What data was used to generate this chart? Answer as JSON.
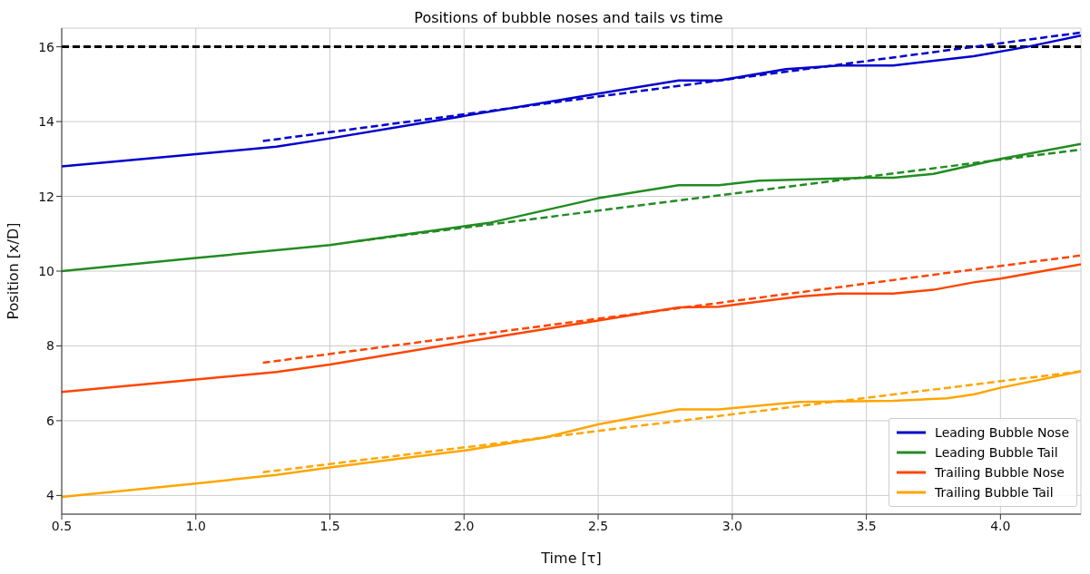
{
  "chart_data": {
    "type": "line",
    "title": "Positions of bubble noses and tails vs time",
    "xlabel": "Time [τ]",
    "ylabel": "Position [x/D]",
    "xlim": [
      0.5,
      4.3
    ],
    "xticks": [
      0.5,
      {
        "value": 1,
        "label": "1.0"
      },
      1.5,
      {
        "value": 2,
        "label": "2.0"
      },
      2.5,
      {
        "value": 3,
        "label": "3.0"
      },
      3.5,
      {
        "value": 4,
        "label": "4.0"
      }
    ],
    "ylim": [
      3.5,
      16.5
    ],
    "yticks": [
      4,
      6,
      8,
      10,
      12,
      14,
      16
    ],
    "grid": true,
    "legend": "bottom right",
    "marker": "none",
    "ref_lines": [
      {
        "axis": "y",
        "value": 16,
        "color": "#000000",
        "line_style": "dashed"
      }
    ],
    "series": [
      {
        "name": "Leading Bubble Nose",
        "color": "#0000cd",
        "line_style": "solid",
        "x": [
          0.5,
          1.0,
          1.3,
          1.5,
          2.0,
          2.5,
          2.8,
          2.95,
          3.2,
          3.4,
          3.6,
          3.9,
          4.1,
          4.3
        ],
        "values": [
          12.8,
          13.13,
          13.33,
          13.55,
          14.15,
          14.75,
          15.1,
          15.1,
          15.4,
          15.5,
          15.5,
          15.75,
          16.0,
          16.3
        ]
      },
      {
        "name": "Leading Bubble Tail",
        "color": "#228b22",
        "line_style": "solid",
        "x": [
          0.5,
          1.0,
          1.5,
          1.75,
          2.0,
          2.1,
          2.5,
          2.8,
          2.95,
          3.1,
          3.5,
          3.6,
          3.75,
          4.0,
          4.3
        ],
        "values": [
          10.0,
          10.35,
          10.7,
          10.95,
          11.2,
          11.3,
          11.95,
          12.3,
          12.3,
          12.42,
          12.5,
          12.5,
          12.6,
          13.0,
          13.4
        ]
      },
      {
        "name": "Trailing Bubble Nose",
        "color": "#ff4500",
        "line_style": "solid",
        "x": [
          0.5,
          1.0,
          1.3,
          1.5,
          2.0,
          2.5,
          2.8,
          2.95,
          3.25,
          3.4,
          3.6,
          3.75,
          3.9,
          4.0,
          4.3
        ],
        "values": [
          6.77,
          7.1,
          7.3,
          7.5,
          8.1,
          8.68,
          9.03,
          9.05,
          9.32,
          9.4,
          9.4,
          9.5,
          9.7,
          9.8,
          10.18
        ]
      },
      {
        "name": "Trailing Bubble Tail",
        "color": "#ffa500",
        "line_style": "solid",
        "x": [
          0.5,
          1.0,
          1.3,
          1.5,
          2.0,
          2.3,
          2.5,
          2.8,
          2.95,
          3.25,
          3.6,
          3.8,
          3.9,
          4.0,
          4.3
        ],
        "values": [
          3.96,
          4.32,
          4.55,
          4.75,
          5.2,
          5.55,
          5.9,
          6.3,
          6.3,
          6.5,
          6.53,
          6.6,
          6.7,
          6.88,
          7.32
        ]
      },
      {
        "color": "#0000cd",
        "line_style": "dashed",
        "x": [
          1.25,
          4.3
        ],
        "values": [
          13.48,
          16.38
        ]
      },
      {
        "color": "#228b22",
        "line_style": "dashed",
        "x": [
          1.6,
          4.3
        ],
        "values": [
          10.8,
          13.25
        ]
      },
      {
        "color": "#ff4500",
        "line_style": "dashed",
        "x": [
          1.25,
          4.3
        ],
        "values": [
          7.55,
          10.42
        ]
      },
      {
        "color": "#ffa500",
        "line_style": "dashed",
        "x": [
          1.25,
          4.3
        ],
        "values": [
          4.62,
          7.32
        ]
      }
    ]
  }
}
